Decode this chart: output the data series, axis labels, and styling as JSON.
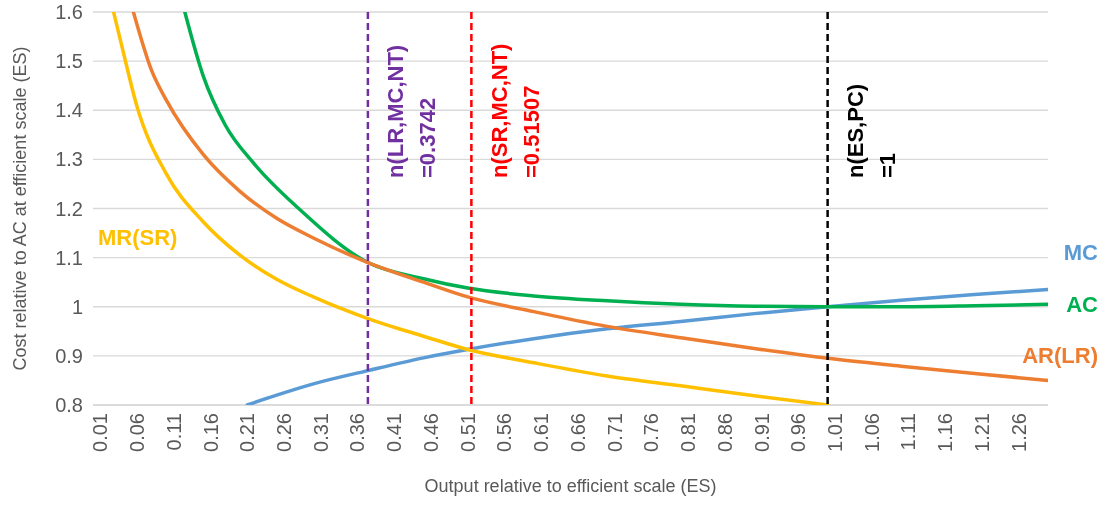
{
  "chart_data": {
    "type": "line",
    "xlabel": "Output relative to efficient scale (ES)",
    "ylabel": "Cost relative to AC at efficient scale (ES)",
    "xlim": [
      0,
      1.3
    ],
    "xticks": [
      0.01,
      0.06,
      0.11,
      0.16,
      0.21,
      0.26,
      0.31,
      0.36,
      0.41,
      0.46,
      0.51,
      0.56,
      0.61,
      0.66,
      0.71,
      0.76,
      0.81,
      0.86,
      0.91,
      0.96,
      1.01,
      1.06,
      1.11,
      1.16,
      1.21,
      1.26
    ],
    "ylim": [
      0.8,
      1.6
    ],
    "yticks": [
      0.8,
      0.9,
      1,
      1.1,
      1.2,
      1.3,
      1.4,
      1.5,
      1.6
    ],
    "grid": "y",
    "marker": "none",
    "line_style": "solid",
    "series": [
      {
        "name": "MC",
        "color": "#5b9bd5",
        "x": [
          0.21,
          0.25,
          0.3,
          0.3742,
          0.45,
          0.51,
          0.6,
          0.7,
          0.8,
          0.9,
          1.0,
          1.1,
          1.2,
          1.3
        ],
        "values": [
          0.8,
          0.82,
          0.843,
          0.87,
          0.896,
          0.913,
          0.935,
          0.955,
          0.97,
          0.986,
          1.0,
          1.013,
          1.025,
          1.035
        ]
      },
      {
        "name": "AC",
        "color": "#00b050",
        "x": [
          0.125,
          0.15,
          0.18,
          0.22,
          0.28,
          0.3742,
          0.45,
          0.51,
          0.6,
          0.7,
          0.8,
          0.9,
          1.0,
          1.1,
          1.2,
          1.3
        ],
        "values": [
          1.6,
          1.47,
          1.37,
          1.29,
          1.2,
          1.09,
          1.057,
          1.038,
          1.022,
          1.012,
          1.005,
          1.001,
          1.0,
          1.0,
          1.002,
          1.005
        ]
      },
      {
        "name": "AR(LR)",
        "color": "#ed7d31",
        "x": [
          0.055,
          0.08,
          0.1,
          0.15,
          0.2,
          0.25,
          0.3,
          0.3742,
          0.45,
          0.51,
          0.6,
          0.7,
          0.8,
          0.9,
          1.0,
          1.1,
          1.2,
          1.3
        ],
        "values": [
          1.6,
          1.48,
          1.42,
          1.31,
          1.235,
          1.18,
          1.14,
          1.09,
          1.05,
          1.02,
          0.99,
          0.96,
          0.937,
          0.915,
          0.895,
          0.879,
          0.864,
          0.85
        ]
      },
      {
        "name": "MR(SR)",
        "color": "#ffc000",
        "x": [
          0.028,
          0.04,
          0.06,
          0.1,
          0.15,
          0.2,
          0.25,
          0.3,
          0.3742,
          0.45,
          0.51,
          0.6,
          0.7,
          0.8,
          0.9,
          1.0
        ],
        "values": [
          1.6,
          1.526,
          1.407,
          1.27,
          1.173,
          1.105,
          1.056,
          1.02,
          0.976,
          0.94,
          0.913,
          0.886,
          0.859,
          0.839,
          0.819,
          0.8
        ]
      }
    ],
    "ref_lines": [
      {
        "axis": "x",
        "value": 0.3742,
        "label": "n(LR,MC,NT)\n=0.3742",
        "color": "#7030a0",
        "line_style": "dashed"
      },
      {
        "axis": "x",
        "value": 0.51507,
        "label": "n(SR,MC,NT)\n=0.51507",
        "color": "#ff0000",
        "line_style": "dashed"
      },
      {
        "axis": "x",
        "value": 1,
        "label": "n(ES,PC)\n=1",
        "color": "#000000",
        "line_style": "dashed"
      }
    ]
  }
}
